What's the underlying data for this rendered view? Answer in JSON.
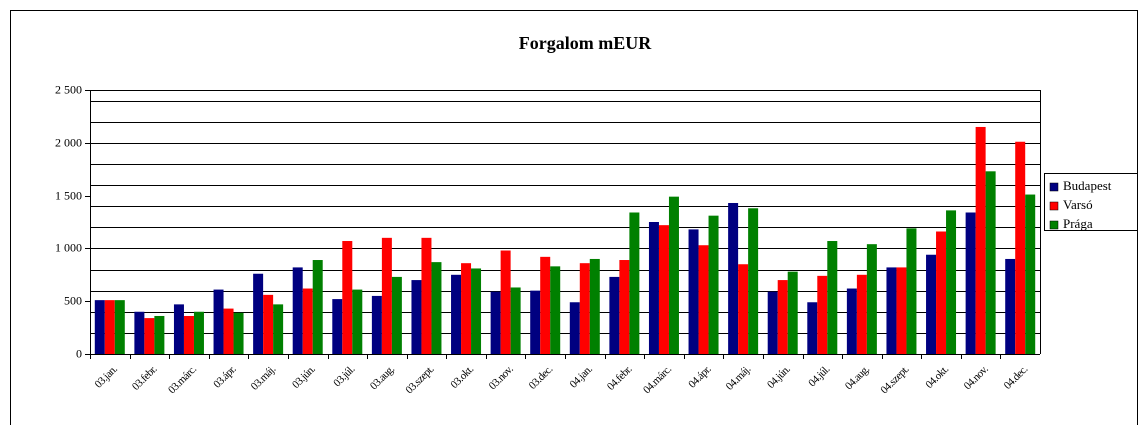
{
  "chart_data": {
    "type": "bar",
    "title": "Forgalom mEUR",
    "categories": [
      "03.jan.",
      "03.febr.",
      "03.márc.",
      "03.ápr.",
      "03.máj.",
      "03.jún.",
      "03.júl.",
      "03.aug.",
      "03.szept.",
      "03.okt.",
      "03.nov.",
      "03.dec.",
      "04.jan.",
      "04.febr.",
      "04.márc.",
      "04.ápr.",
      "04.máj.",
      "04.jún.",
      "04.júl.",
      "04.aug.",
      "04.szept.",
      "04.okt.",
      "04.nov.",
      "04.dec."
    ],
    "series": [
      {
        "name": "Budapest",
        "color": "#000080",
        "values": [
          510,
          400,
          470,
          610,
          760,
          820,
          520,
          550,
          700,
          750,
          590,
          600,
          490,
          730,
          1250,
          1180,
          1430,
          590,
          490,
          620,
          820,
          940,
          1340,
          900
        ]
      },
      {
        "name": "Varsó",
        "color": "#ff0000",
        "values": [
          510,
          340,
          360,
          430,
          560,
          620,
          1070,
          1100,
          1100,
          860,
          980,
          920,
          860,
          890,
          1220,
          1030,
          850,
          700,
          740,
          750,
          820,
          1160,
          2150,
          2010
        ]
      },
      {
        "name": "Prága",
        "color": "#008000",
        "values": [
          510,
          360,
          400,
          390,
          470,
          890,
          610,
          730,
          870,
          810,
          630,
          830,
          900,
          1340,
          1490,
          1310,
          1380,
          780,
          1070,
          1040,
          1190,
          1360,
          1730,
          1510
        ]
      }
    ],
    "ylim": [
      0,
      2500
    ],
    "yticks": [
      0,
      500,
      {
        "value": 1000,
        "label": "1 000"
      },
      {
        "value": 1500,
        "label": "1 500"
      },
      {
        "value": 2000,
        "label": "2 000"
      },
      {
        "value": 2500,
        "label": "2 500"
      }
    ],
    "grid_lines": [
      200,
      400,
      600,
      800,
      1000,
      1200,
      1400,
      1600,
      1800,
      2000,
      2200,
      2400,
      2500
    ],
    "legend": "right"
  }
}
